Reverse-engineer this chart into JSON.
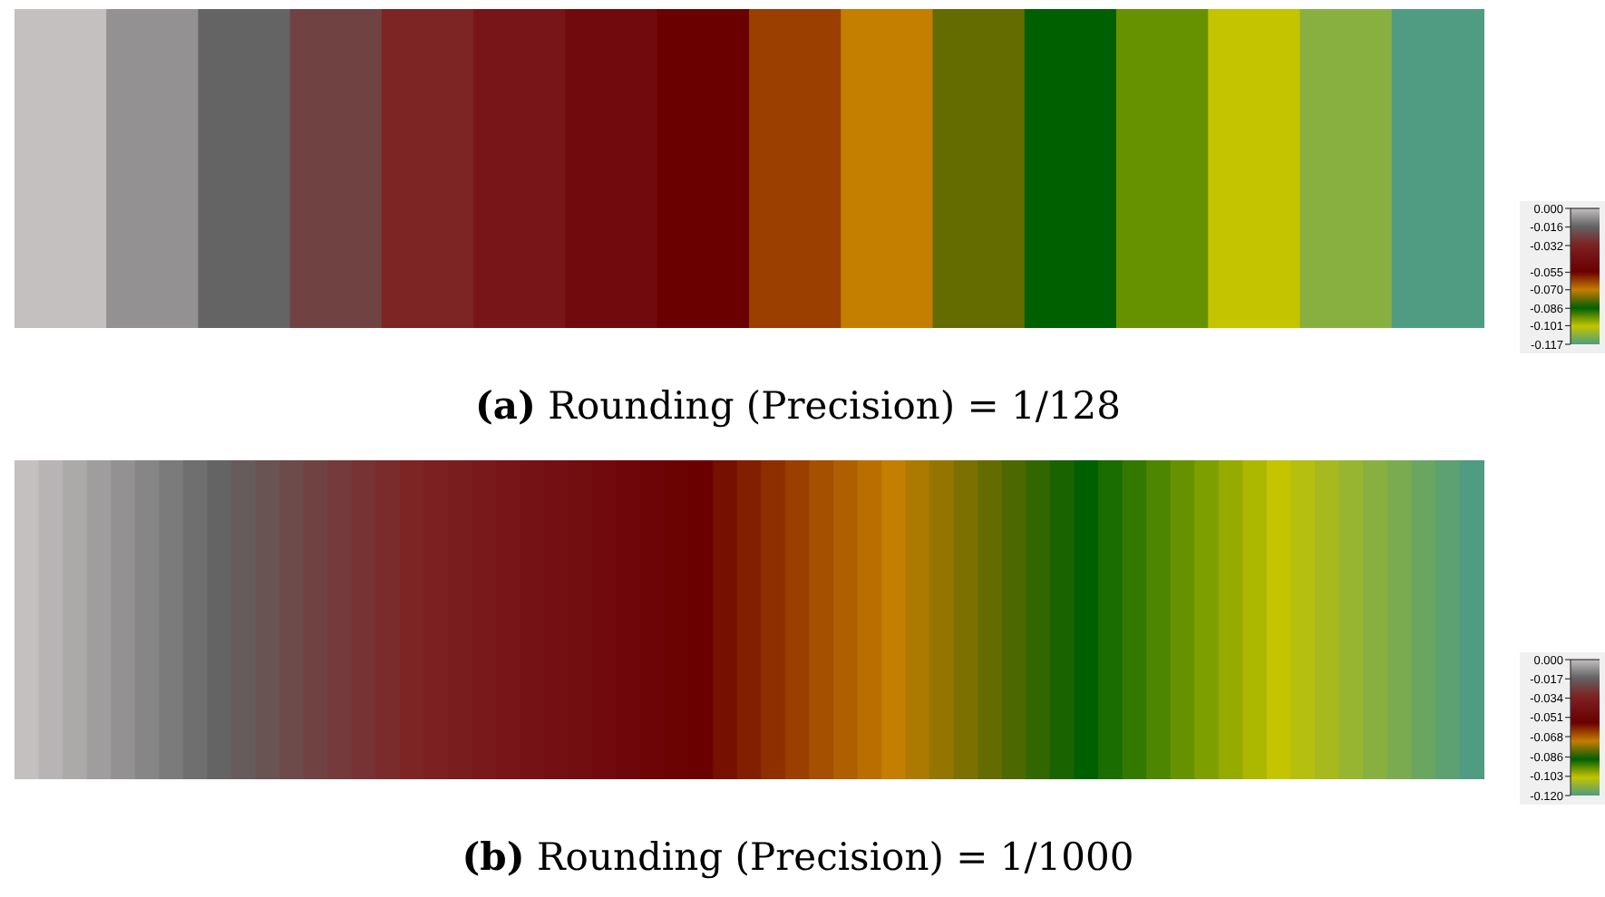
{
  "chart_data": [
    {
      "type": "heatmap",
      "title": "(a) Rounding (Precision) = 1/128",
      "categories": [
        null,
        null,
        null,
        null,
        null,
        null,
        null,
        null,
        null,
        null,
        null,
        null,
        null,
        null,
        null,
        null
      ],
      "y_categories": [
        null
      ],
      "cells": [
        [
          0,
          -0.0078,
          -0.0156,
          -0.0234,
          -0.0312,
          -0.039,
          -0.0468,
          -0.0546,
          -0.0624,
          -0.0702,
          -0.078,
          -0.0858,
          -0.0936,
          -0.1014,
          -0.1092,
          -0.117
        ]
      ],
      "clim": [
        -0.117,
        0
      ],
      "cticks": [
        {
          "value": 0,
          "label": "0.000"
        },
        -0.016,
        -0.032,
        -0.055,
        {
          "value": -0.07,
          "label": "-0.070"
        },
        -0.086,
        -0.101,
        -0.117
      ]
    },
    {
      "type": "heatmap",
      "title": "(b) Rounding (Precision) = 1/1000",
      "categories": [
        null,
        null,
        null,
        null,
        null,
        null,
        null,
        null,
        null,
        null,
        null,
        null,
        null,
        null,
        null,
        null,
        null,
        null,
        null,
        null,
        null,
        null,
        null,
        null,
        null,
        null,
        null,
        null,
        null,
        null,
        null,
        null,
        null,
        null,
        null,
        null,
        null,
        null,
        null,
        null,
        null,
        null,
        null,
        null,
        null,
        null,
        null,
        null,
        null,
        null,
        null,
        null,
        null,
        null,
        null,
        null,
        null,
        null,
        null,
        null,
        null
      ],
      "y_categories": [
        null
      ],
      "cells": [
        [
          0,
          -0.002,
          -0.004,
          -0.006,
          -0.008,
          -0.01,
          -0.012,
          -0.014,
          -0.016,
          -0.018,
          -0.02,
          -0.022,
          -0.024,
          -0.026,
          -0.028,
          -0.03,
          -0.032,
          -0.034,
          -0.036,
          -0.038,
          -0.04,
          -0.042,
          -0.044,
          -0.046,
          -0.048,
          -0.05,
          -0.052,
          -0.054,
          -0.056,
          -0.058,
          -0.06,
          -0.062,
          -0.064,
          -0.066,
          -0.068,
          -0.07,
          -0.072,
          -0.074,
          -0.076,
          -0.078,
          -0.08,
          -0.082,
          -0.084,
          -0.086,
          -0.088,
          -0.09,
          -0.092,
          -0.094,
          -0.096,
          -0.098,
          -0.1,
          -0.102,
          -0.104,
          -0.106,
          -0.108,
          -0.11,
          -0.112,
          -0.114,
          -0.116,
          -0.118,
          -0.12
        ]
      ],
      "clim": [
        -0.12,
        0
      ],
      "cticks": [
        {
          "value": 0,
          "label": "0.000"
        },
        -0.017,
        -0.034,
        -0.051,
        -0.068,
        -0.086,
        -0.103,
        {
          "value": -0.12,
          "label": "-0.120"
        }
      ]
    }
  ]
}
